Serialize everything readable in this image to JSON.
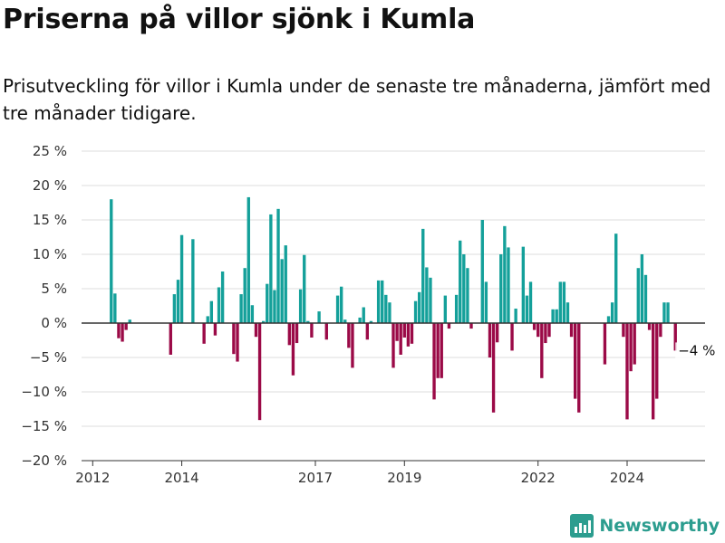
{
  "header": {
    "title": "Priserna på villor sjönk i Kumla",
    "subtitle": "Prisutveckling för villor i Kumla under de senaste tre månaderna, jämfört med tre månader tidigare."
  },
  "brand": {
    "name": "Newsworthy",
    "logo_icon": "newsworthy-logo-icon"
  },
  "colors": {
    "positive": "#14a09a",
    "negative": "#9b0a47",
    "grid": "#dddddd",
    "zero": "#333333"
  },
  "chart_data": {
    "type": "bar",
    "title": "",
    "xlabel": "",
    "ylabel": "",
    "ylim": [
      -20,
      25
    ],
    "ytick_values": [
      -20,
      -15,
      -10,
      -5,
      0,
      5,
      10,
      15,
      20,
      25
    ],
    "ytick_labels": [
      "−20 %",
      "−15 %",
      "−10 %",
      "−5 %",
      "0 %",
      "5 %",
      "10 %",
      "15 %",
      "20 %",
      "25 %"
    ],
    "xlim": [
      "2011-10",
      "2025-10"
    ],
    "xtick_dates": [
      "2012-01",
      "2014-01",
      "2017-01",
      "2019-01",
      "2022-01",
      "2024-01"
    ],
    "xtick_labels": [
      "2012",
      "2014",
      "2017",
      "2019",
      "2022",
      "2024"
    ],
    "grid": true,
    "legend": "none",
    "annotation": {
      "text": "−4 %",
      "date": "2025-02",
      "value": -4
    },
    "series": [
      {
        "values": [
          {
            "x": "2012-06",
            "y": 18
          },
          {
            "x": "2012-07",
            "y": 4.3
          },
          {
            "x": "2012-08",
            "y": -2.2
          },
          {
            "x": "2012-09",
            "y": -2.7
          },
          {
            "x": "2012-10",
            "y": -1
          },
          {
            "x": "2012-11",
            "y": 0.5
          },
          {
            "x": "2013-10",
            "y": -4.6
          },
          {
            "x": "2013-11",
            "y": 4.2
          },
          {
            "x": "2013-12",
            "y": 6.3
          },
          {
            "x": "2014-01",
            "y": 12.8
          },
          {
            "x": "2014-04",
            "y": 12.2
          },
          {
            "x": "2014-07",
            "y": -3
          },
          {
            "x": "2014-08",
            "y": 1
          },
          {
            "x": "2014-09",
            "y": 3.2
          },
          {
            "x": "2014-10",
            "y": -1.8
          },
          {
            "x": "2014-11",
            "y": 5.2
          },
          {
            "x": "2014-12",
            "y": 7.5
          },
          {
            "x": "2015-03",
            "y": -4.5
          },
          {
            "x": "2015-04",
            "y": -5.6
          },
          {
            "x": "2015-05",
            "y": 4.2
          },
          {
            "x": "2015-06",
            "y": 8
          },
          {
            "x": "2015-07",
            "y": 18.3
          },
          {
            "x": "2015-08",
            "y": 2.6
          },
          {
            "x": "2015-09",
            "y": -2
          },
          {
            "x": "2015-10",
            "y": -14.1
          },
          {
            "x": "2015-11",
            "y": 0.3
          },
          {
            "x": "2015-12",
            "y": 5.7
          },
          {
            "x": "2016-01",
            "y": 15.8
          },
          {
            "x": "2016-02",
            "y": 4.8
          },
          {
            "x": "2016-03",
            "y": 16.6
          },
          {
            "x": "2016-04",
            "y": 9.3
          },
          {
            "x": "2016-05",
            "y": 11.3
          },
          {
            "x": "2016-06",
            "y": -3.2
          },
          {
            "x": "2016-07",
            "y": -7.6
          },
          {
            "x": "2016-08",
            "y": -2.9
          },
          {
            "x": "2016-09",
            "y": 4.9
          },
          {
            "x": "2016-10",
            "y": 9.9
          },
          {
            "x": "2016-11",
            "y": 0.3
          },
          {
            "x": "2016-12",
            "y": -2.1
          },
          {
            "x": "2017-02",
            "y": 1.7
          },
          {
            "x": "2017-04",
            "y": -2.4
          },
          {
            "x": "2017-07",
            "y": 4
          },
          {
            "x": "2017-08",
            "y": 5.3
          },
          {
            "x": "2017-09",
            "y": 0.5
          },
          {
            "x": "2017-10",
            "y": -3.6
          },
          {
            "x": "2017-11",
            "y": -6.5
          },
          {
            "x": "2018-01",
            "y": 0.8
          },
          {
            "x": "2018-02",
            "y": 2.3
          },
          {
            "x": "2018-03",
            "y": -2.4
          },
          {
            "x": "2018-04",
            "y": 0.3
          },
          {
            "x": "2018-06",
            "y": 6.2
          },
          {
            "x": "2018-07",
            "y": 6.2
          },
          {
            "x": "2018-08",
            "y": 4.1
          },
          {
            "x": "2018-09",
            "y": 3
          },
          {
            "x": "2018-10",
            "y": -6.5
          },
          {
            "x": "2018-11",
            "y": -2.6
          },
          {
            "x": "2018-12",
            "y": -4.6
          },
          {
            "x": "2019-01",
            "y": -2.1
          },
          {
            "x": "2019-02",
            "y": -3.4
          },
          {
            "x": "2019-03",
            "y": -3
          },
          {
            "x": "2019-04",
            "y": 3.2
          },
          {
            "x": "2019-05",
            "y": 4.5
          },
          {
            "x": "2019-06",
            "y": 13.7
          },
          {
            "x": "2019-07",
            "y": 8.1
          },
          {
            "x": "2019-08",
            "y": 6.6
          },
          {
            "x": "2019-09",
            "y": -11.1
          },
          {
            "x": "2019-10",
            "y": -8
          },
          {
            "x": "2019-11",
            "y": -8
          },
          {
            "x": "2019-12",
            "y": 4
          },
          {
            "x": "2020-01",
            "y": -0.8
          },
          {
            "x": "2020-03",
            "y": 4.1
          },
          {
            "x": "2020-04",
            "y": 12
          },
          {
            "x": "2020-05",
            "y": 10
          },
          {
            "x": "2020-06",
            "y": 8
          },
          {
            "x": "2020-07",
            "y": -0.8
          },
          {
            "x": "2020-10",
            "y": 15
          },
          {
            "x": "2020-11",
            "y": 6
          },
          {
            "x": "2020-12",
            "y": -5
          },
          {
            "x": "2021-01",
            "y": -13
          },
          {
            "x": "2021-02",
            "y": -2.8
          },
          {
            "x": "2021-03",
            "y": 10
          },
          {
            "x": "2021-04",
            "y": 14.1
          },
          {
            "x": "2021-05",
            "y": 11
          },
          {
            "x": "2021-06",
            "y": -4
          },
          {
            "x": "2021-07",
            "y": 2.1
          },
          {
            "x": "2021-09",
            "y": 11.1
          },
          {
            "x": "2021-10",
            "y": 4
          },
          {
            "x": "2021-11",
            "y": 6
          },
          {
            "x": "2021-12",
            "y": -1
          },
          {
            "x": "2022-01",
            "y": -2
          },
          {
            "x": "2022-02",
            "y": -8
          },
          {
            "x": "2022-03",
            "y": -2.9
          },
          {
            "x": "2022-04",
            "y": -2
          },
          {
            "x": "2022-05",
            "y": 2
          },
          {
            "x": "2022-06",
            "y": 2
          },
          {
            "x": "2022-07",
            "y": 6
          },
          {
            "x": "2022-08",
            "y": 6
          },
          {
            "x": "2022-09",
            "y": 3
          },
          {
            "x": "2022-10",
            "y": -2
          },
          {
            "x": "2022-11",
            "y": -11
          },
          {
            "x": "2022-12",
            "y": -13
          },
          {
            "x": "2023-07",
            "y": -6
          },
          {
            "x": "2023-08",
            "y": 1
          },
          {
            "x": "2023-09",
            "y": 3
          },
          {
            "x": "2023-10",
            "y": 13
          },
          {
            "x": "2023-12",
            "y": -2
          },
          {
            "x": "2024-01",
            "y": -14
          },
          {
            "x": "2024-02",
            "y": -7
          },
          {
            "x": "2024-03",
            "y": -6
          },
          {
            "x": "2024-04",
            "y": 8
          },
          {
            "x": "2024-05",
            "y": 10
          },
          {
            "x": "2024-06",
            "y": 7
          },
          {
            "x": "2024-07",
            "y": -1
          },
          {
            "x": "2024-08",
            "y": -14
          },
          {
            "x": "2024-09",
            "y": -11
          },
          {
            "x": "2024-10",
            "y": -2
          },
          {
            "x": "2024-11",
            "y": 3
          },
          {
            "x": "2024-12",
            "y": 3
          },
          {
            "x": "2025-02",
            "y": -4
          }
        ]
      }
    ]
  }
}
